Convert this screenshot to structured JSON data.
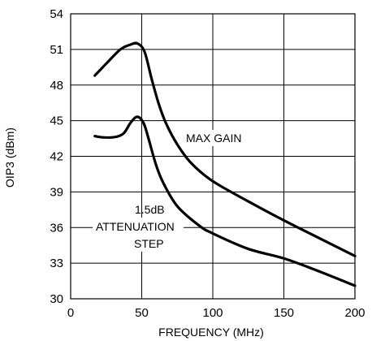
{
  "chart_data": {
    "type": "line",
    "xlabel": "FREQUENCY (MHz)",
    "ylabel": "OIP3 (dBm)",
    "xlim": [
      0,
      200
    ],
    "ylim": [
      30,
      54
    ],
    "xticks": [
      0,
      50,
      100,
      150,
      200
    ],
    "yticks": [
      30,
      33,
      36,
      39,
      42,
      45,
      48,
      51,
      54
    ],
    "grid": true,
    "series": [
      {
        "name": "MAX GAIN",
        "x": [
          17,
          25,
          35,
          42,
          47,
          52,
          57,
          62,
          67,
          75,
          85,
          100,
          125,
          150,
          175,
          200
        ],
        "y": [
          48.8,
          49.8,
          51.0,
          51.4,
          51.5,
          50.8,
          48.5,
          46.4,
          44.8,
          43.0,
          41.4,
          39.9,
          38.2,
          36.6,
          35.1,
          33.6
        ]
      },
      {
        "name": "1.5dB ATTENUATION STEP",
        "x": [
          17,
          22,
          30,
          37,
          42,
          46,
          49,
          52,
          55,
          60,
          65,
          75,
          90,
          100,
          125,
          150,
          175,
          200
        ],
        "y": [
          43.7,
          43.6,
          43.6,
          43.9,
          44.8,
          45.3,
          45.2,
          44.6,
          43.4,
          41.3,
          39.8,
          37.8,
          36.2,
          35.5,
          34.2,
          33.4,
          32.3,
          31.1
        ]
      }
    ],
    "annotations": {
      "max_gain": "MAX GAIN",
      "atten_line1": "1.5dB",
      "atten_line2": "ATTENUATION",
      "atten_line3": "STEP"
    }
  }
}
